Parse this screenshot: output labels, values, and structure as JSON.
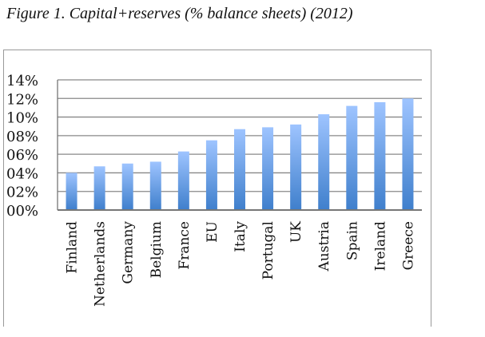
{
  "chart_data": {
    "type": "bar",
    "title": "Figure 1. Capital+reserves (% balance sheets) (2012)",
    "xlabel": "",
    "ylabel": "",
    "ylim": [
      0,
      14
    ],
    "yticks": [
      "00%",
      "02%",
      "04%",
      "06%",
      "08%",
      "10%",
      "12%",
      "14%"
    ],
    "grid": true,
    "categories": [
      "Finland",
      "Netherlands",
      "Germany",
      "Belgium",
      "France",
      "EU",
      "Italy",
      "Portugal",
      "UK",
      "Austria",
      "Spain",
      "Ireland",
      "Greece"
    ],
    "values": [
      4.0,
      4.7,
      5.0,
      5.2,
      6.3,
      7.5,
      8.7,
      8.9,
      9.2,
      10.3,
      11.2,
      11.6,
      12.0
    ],
    "colors": {
      "bar_top": "#9ec4ff",
      "bar_bottom": "#3f7fcc",
      "grid": "#888888"
    }
  }
}
